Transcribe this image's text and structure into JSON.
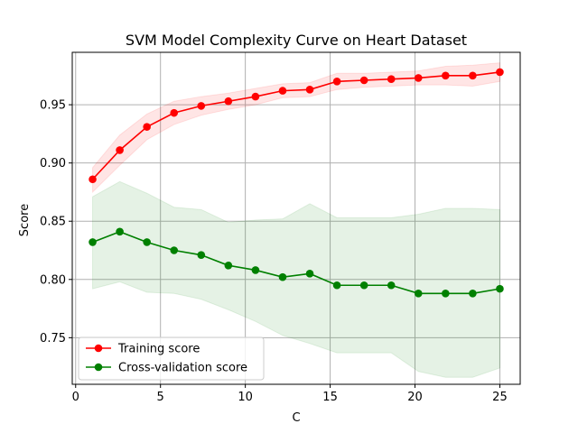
{
  "chart_data": {
    "type": "line",
    "title": "SVM Model Complexity Curve on Heart Dataset",
    "xlabel": "C",
    "ylabel": "Score",
    "xlim": [
      -0.2,
      26.2
    ],
    "ylim": [
      0.71,
      0.995
    ],
    "xticks": [
      0,
      5,
      10,
      15,
      20,
      25
    ],
    "yticks": [
      0.75,
      0.8,
      0.85,
      0.9,
      0.95
    ],
    "ytick_labels": [
      "0.75",
      "0.80",
      "0.85",
      "0.90",
      "0.95"
    ],
    "grid": true,
    "legend_position": "lower-left",
    "x": [
      1.0,
      2.6,
      4.2,
      5.8,
      7.4,
      9.0,
      10.6,
      12.2,
      13.8,
      15.4,
      17.0,
      18.6,
      20.2,
      21.8,
      23.4,
      25.0
    ],
    "series": [
      {
        "name": "Training score",
        "color": "#ff0000",
        "band_color": "#ff0000",
        "values": [
          0.886,
          0.911,
          0.931,
          0.943,
          0.949,
          0.953,
          0.957,
          0.962,
          0.963,
          0.97,
          0.971,
          0.972,
          0.973,
          0.975,
          0.975,
          0.978
        ],
        "upper": [
          0.896,
          0.924,
          0.942,
          0.953,
          0.957,
          0.96,
          0.964,
          0.968,
          0.969,
          0.977,
          0.977,
          0.978,
          0.979,
          0.983,
          0.984,
          0.986
        ],
        "lower": [
          0.875,
          0.898,
          0.92,
          0.933,
          0.941,
          0.946,
          0.95,
          0.956,
          0.957,
          0.963,
          0.965,
          0.966,
          0.967,
          0.967,
          0.966,
          0.97
        ]
      },
      {
        "name": "Cross-validation score",
        "color": "#008000",
        "band_color": "#008000",
        "values": [
          0.832,
          0.841,
          0.832,
          0.825,
          0.821,
          0.812,
          0.808,
          0.802,
          0.805,
          0.795,
          0.795,
          0.795,
          0.788,
          0.788,
          0.788,
          0.792
        ],
        "upper": [
          0.871,
          0.884,
          0.874,
          0.862,
          0.86,
          0.849,
          0.851,
          0.852,
          0.865,
          0.853,
          0.853,
          0.853,
          0.856,
          0.861,
          0.861,
          0.86
        ],
        "lower": [
          0.792,
          0.798,
          0.789,
          0.788,
          0.783,
          0.774,
          0.764,
          0.752,
          0.745,
          0.737,
          0.737,
          0.737,
          0.721,
          0.716,
          0.716,
          0.724
        ]
      }
    ]
  }
}
